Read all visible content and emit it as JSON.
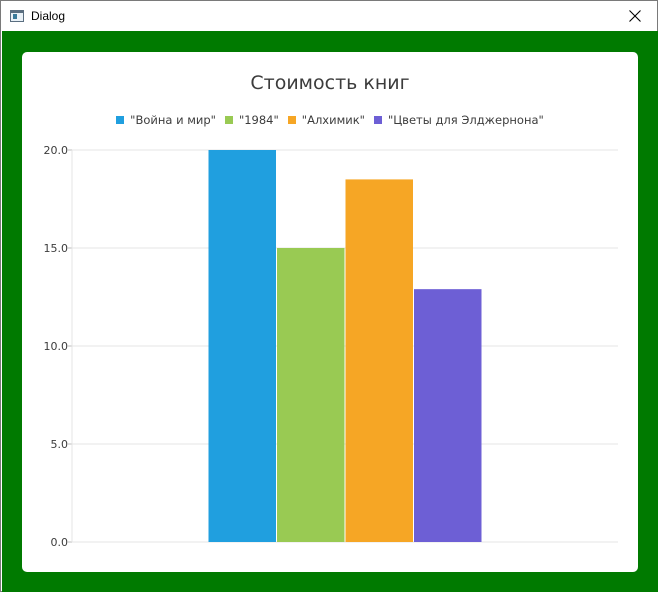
{
  "window": {
    "title": "Dialog"
  },
  "chart_data": {
    "type": "bar",
    "title": "Стоимость книг",
    "categories": [
      ""
    ],
    "series": [
      {
        "name": "\"Война и мир\"",
        "values": [
          20.0
        ],
        "color": "#209fdf"
      },
      {
        "name": "\"1984\"",
        "values": [
          15.0
        ],
        "color": "#99ca53"
      },
      {
        "name": "\"Алхимик\"",
        "values": [
          18.5
        ],
        "color": "#f6a625"
      },
      {
        "name": "\"Цветы для Элджернона\"",
        "values": [
          12.9
        ],
        "color": "#6d5fd5"
      }
    ],
    "ylim": [
      0,
      20
    ],
    "yticks": [
      "0.0",
      "5.0",
      "10.0",
      "15.0",
      "20.0"
    ],
    "grid": true,
    "legend_position": "top-center",
    "xlabel": "",
    "ylabel": ""
  },
  "colors": {
    "background": "#007a00",
    "panel": "#ffffff"
  }
}
